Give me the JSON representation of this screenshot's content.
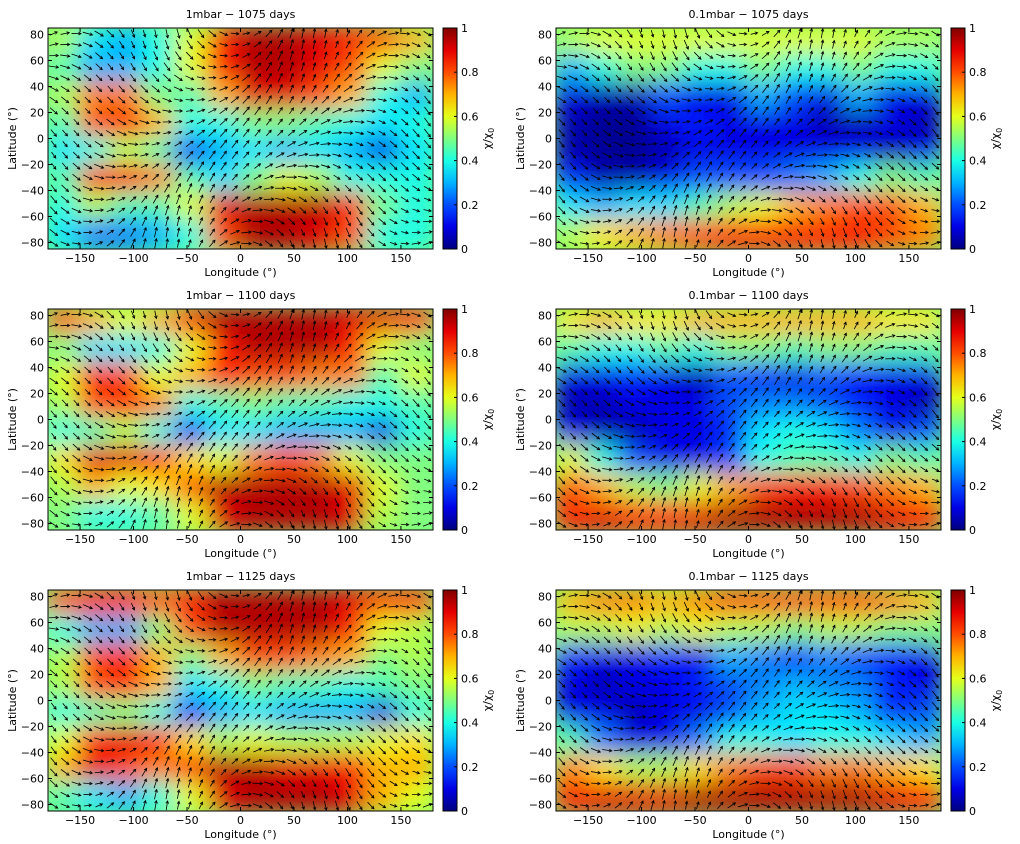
{
  "chart_data": [
    {
      "type": "heatmap",
      "title": "1mbar − 1075 days",
      "xlabel": "Longitude (°)",
      "ylabel": "Latitude (°)",
      "colorbar_label": "χ/χ",
      "xlim": [
        -180,
        180
      ],
      "ylim": [
        -85,
        85
      ],
      "xticks": [
        -150,
        -100,
        -50,
        0,
        50,
        100,
        150
      ],
      "yticks": [
        -80,
        -60,
        -40,
        -20,
        0,
        20,
        40,
        60,
        80
      ],
      "clim": [
        0,
        1
      ],
      "cticks": [
        0,
        0.2,
        0.4,
        0.6,
        0.8,
        1
      ],
      "overlay": "wind vectors",
      "z": [
        [
          0.55,
          0.35,
          0.3,
          0.4,
          0.6,
          0.85,
          0.95,
          0.95,
          0.9,
          0.85,
          0.8,
          0.7
        ],
        [
          0.45,
          0.3,
          0.3,
          0.4,
          0.6,
          0.85,
          0.95,
          0.95,
          0.9,
          0.8,
          0.6,
          0.5
        ],
        [
          0.55,
          0.75,
          0.75,
          0.5,
          0.45,
          0.7,
          0.9,
          0.9,
          0.8,
          0.7,
          0.4,
          0.3
        ],
        [
          0.45,
          0.8,
          0.85,
          0.7,
          0.4,
          0.4,
          0.5,
          0.5,
          0.45,
          0.4,
          0.35,
          0.4
        ],
        [
          0.35,
          0.4,
          0.55,
          0.45,
          0.15,
          0.3,
          0.35,
          0.3,
          0.35,
          0.3,
          0.1,
          0.35
        ],
        [
          0.45,
          0.85,
          0.85,
          0.75,
          0.45,
          0.35,
          0.5,
          0.6,
          0.55,
          0.4,
          0.4,
          0.4
        ],
        [
          0.4,
          0.55,
          0.45,
          0.45,
          0.6,
          0.9,
          0.95,
          0.95,
          0.95,
          0.85,
          0.5,
          0.4
        ],
        [
          0.35,
          0.25,
          0.25,
          0.3,
          0.4,
          0.8,
          0.95,
          0.95,
          0.9,
          0.8,
          0.4,
          0.4
        ]
      ]
    },
    {
      "type": "heatmap",
      "title": "0.1mbar − 1075 days",
      "xlabel": "Longitude (°)",
      "ylabel": "Latitude (°)",
      "colorbar_label": "χ/χ",
      "xlim": [
        -180,
        180
      ],
      "ylim": [
        -85,
        85
      ],
      "xticks": [
        -150,
        -100,
        -50,
        0,
        50,
        100,
        150
      ],
      "yticks": [
        -80,
        -60,
        -40,
        -20,
        0,
        20,
        40,
        60,
        80
      ],
      "clim": [
        0,
        1
      ],
      "cticks": [
        0,
        0.2,
        0.4,
        0.6,
        0.8,
        1
      ],
      "overlay": "wind vectors",
      "z": [
        [
          0.55,
          0.6,
          0.6,
          0.6,
          0.6,
          0.6,
          0.6,
          0.6,
          0.6,
          0.6,
          0.55,
          0.55
        ],
        [
          0.3,
          0.4,
          0.5,
          0.5,
          0.4,
          0.4,
          0.5,
          0.4,
          0.4,
          0.5,
          0.4,
          0.4
        ],
        [
          0.1,
          0.05,
          0.05,
          0.2,
          0.1,
          0.1,
          0.3,
          0.2,
          0.1,
          0.3,
          0.1,
          0.1
        ],
        [
          0.05,
          0.02,
          0.02,
          0.1,
          0.15,
          0.1,
          0.1,
          0.1,
          0.05,
          0.05,
          0.1,
          0.05
        ],
        [
          0.05,
          0.02,
          0.02,
          0.05,
          0.1,
          0.1,
          0.1,
          0.1,
          0.1,
          0.1,
          0.05,
          0.1
        ],
        [
          0.15,
          0.05,
          0.05,
          0.1,
          0.2,
          0.2,
          0.2,
          0.25,
          0.3,
          0.4,
          0.5,
          0.45
        ],
        [
          0.35,
          0.3,
          0.35,
          0.35,
          0.45,
          0.55,
          0.6,
          0.7,
          0.75,
          0.8,
          0.8,
          0.7
        ],
        [
          0.55,
          0.65,
          0.7,
          0.75,
          0.8,
          0.85,
          0.85,
          0.85,
          0.85,
          0.85,
          0.8,
          0.75
        ]
      ]
    },
    {
      "type": "heatmap",
      "title": "1mbar − 1100 days",
      "xlabel": "Longitude (°)",
      "ylabel": "Latitude (°)",
      "colorbar_label": "χ/χ",
      "xlim": [
        -180,
        180
      ],
      "ylim": [
        -85,
        85
      ],
      "xticks": [
        -150,
        -100,
        -50,
        0,
        50,
        100,
        150
      ],
      "yticks": [
        -80,
        -60,
        -40,
        -20,
        0,
        20,
        40,
        60,
        80
      ],
      "clim": [
        0,
        1
      ],
      "cticks": [
        0,
        0.2,
        0.4,
        0.6,
        0.8,
        1
      ],
      "overlay": "wind vectors",
      "z": [
        [
          0.8,
          0.7,
          0.6,
          0.7,
          0.85,
          0.95,
          0.95,
          0.95,
          0.95,
          0.9,
          0.9,
          0.85
        ],
        [
          0.5,
          0.35,
          0.35,
          0.4,
          0.6,
          0.85,
          0.95,
          0.95,
          0.95,
          0.85,
          0.6,
          0.5
        ],
        [
          0.6,
          0.85,
          0.8,
          0.6,
          0.7,
          0.85,
          0.8,
          0.8,
          0.75,
          0.75,
          0.45,
          0.6
        ],
        [
          0.55,
          0.8,
          0.85,
          0.75,
          0.4,
          0.45,
          0.5,
          0.45,
          0.45,
          0.4,
          0.4,
          0.45
        ],
        [
          0.4,
          0.45,
          0.55,
          0.4,
          0.15,
          0.35,
          0.35,
          0.3,
          0.3,
          0.3,
          0.1,
          0.4
        ],
        [
          0.65,
          0.9,
          0.9,
          0.85,
          0.65,
          0.6,
          0.75,
          0.8,
          0.75,
          0.6,
          0.5,
          0.5
        ],
        [
          0.55,
          0.7,
          0.6,
          0.65,
          0.8,
          0.95,
          0.95,
          0.95,
          0.95,
          0.9,
          0.6,
          0.5
        ],
        [
          0.5,
          0.4,
          0.4,
          0.45,
          0.6,
          0.9,
          0.95,
          0.95,
          0.95,
          0.9,
          0.55,
          0.5
        ]
      ]
    },
    {
      "type": "heatmap",
      "title": "0.1mbar − 1100 days",
      "xlabel": "Longitude (°)",
      "ylabel": "Latitude (°)",
      "colorbar_label": "χ/χ",
      "xlim": [
        -180,
        180
      ],
      "ylim": [
        -85,
        85
      ],
      "xticks": [
        -150,
        -100,
        -50,
        0,
        50,
        100,
        150
      ],
      "yticks": [
        -80,
        -60,
        -40,
        -20,
        0,
        20,
        40,
        60,
        80
      ],
      "clim": [
        0,
        1
      ],
      "cticks": [
        0,
        0.2,
        0.4,
        0.6,
        0.8,
        1
      ],
      "overlay": "wind vectors",
      "z": [
        [
          0.65,
          0.7,
          0.65,
          0.65,
          0.7,
          0.7,
          0.7,
          0.7,
          0.7,
          0.7,
          0.65,
          0.65
        ],
        [
          0.45,
          0.4,
          0.4,
          0.45,
          0.4,
          0.5,
          0.5,
          0.45,
          0.5,
          0.5,
          0.45,
          0.45
        ],
        [
          0.1,
          0.1,
          0.15,
          0.1,
          0.05,
          0.2,
          0.15,
          0.1,
          0.2,
          0.15,
          0.1,
          0.1
        ],
        [
          0.05,
          0.05,
          0.1,
          0.1,
          0.1,
          0.2,
          0.25,
          0.25,
          0.2,
          0.15,
          0.1,
          0.05
        ],
        [
          0.1,
          0.05,
          0.05,
          0.1,
          0.1,
          0.15,
          0.35,
          0.4,
          0.35,
          0.25,
          0.1,
          0.2
        ],
        [
          0.6,
          0.4,
          0.2,
          0.1,
          0.1,
          0.2,
          0.4,
          0.45,
          0.45,
          0.4,
          0.5,
          0.45
        ],
        [
          0.8,
          0.7,
          0.55,
          0.5,
          0.6,
          0.7,
          0.8,
          0.85,
          0.85,
          0.8,
          0.75,
          0.7
        ],
        [
          0.85,
          0.9,
          0.85,
          0.85,
          0.9,
          0.95,
          0.95,
          0.95,
          0.95,
          0.95,
          0.9,
          0.85
        ]
      ]
    },
    {
      "type": "heatmap",
      "title": "1mbar − 1125 days",
      "xlabel": "Longitude (°)",
      "ylabel": "Latitude (°)",
      "colorbar_label": "χ/χ",
      "xlim": [
        -180,
        180
      ],
      "ylim": [
        -85,
        85
      ],
      "xticks": [
        -150,
        -100,
        -50,
        0,
        50,
        100,
        150
      ],
      "yticks": [
        -80,
        -60,
        -40,
        -20,
        0,
        20,
        40,
        60,
        80
      ],
      "clim": [
        0,
        1
      ],
      "cticks": [
        0,
        0.2,
        0.4,
        0.6,
        0.8,
        1
      ],
      "overlay": "wind vectors",
      "z": [
        [
          0.8,
          0.85,
          0.85,
          0.8,
          0.85,
          0.95,
          0.95,
          0.95,
          0.95,
          0.9,
          0.85,
          0.85
        ],
        [
          0.4,
          0.3,
          0.3,
          0.5,
          0.8,
          0.95,
          0.95,
          0.95,
          0.95,
          0.85,
          0.6,
          0.55
        ],
        [
          0.55,
          0.8,
          0.85,
          0.7,
          0.5,
          0.7,
          0.8,
          0.8,
          0.75,
          0.7,
          0.5,
          0.55
        ],
        [
          0.55,
          0.8,
          0.85,
          0.7,
          0.35,
          0.4,
          0.5,
          0.45,
          0.45,
          0.4,
          0.45,
          0.5
        ],
        [
          0.4,
          0.45,
          0.5,
          0.4,
          0.15,
          0.3,
          0.35,
          0.3,
          0.3,
          0.3,
          0.1,
          0.4
        ],
        [
          0.6,
          0.85,
          0.9,
          0.85,
          0.65,
          0.55,
          0.6,
          0.55,
          0.55,
          0.55,
          0.6,
          0.65
        ],
        [
          0.7,
          0.9,
          0.8,
          0.75,
          0.85,
          0.95,
          0.95,
          0.9,
          0.9,
          0.85,
          0.7,
          0.7
        ],
        [
          0.45,
          0.35,
          0.3,
          0.4,
          0.6,
          0.9,
          0.95,
          0.95,
          0.95,
          0.9,
          0.7,
          0.6
        ]
      ]
    },
    {
      "type": "heatmap",
      "title": "0.1mbar − 1125 days",
      "xlabel": "Longitude (°)",
      "ylabel": "Latitude (°)",
      "colorbar_label": "χ/χ",
      "xlim": [
        -180,
        180
      ],
      "ylim": [
        -85,
        85
      ],
      "xticks": [
        -150,
        -100,
        -50,
        0,
        50,
        100,
        150
      ],
      "yticks": [
        -80,
        -60,
        -40,
        -20,
        0,
        20,
        40,
        60,
        80
      ],
      "clim": [
        0,
        1
      ],
      "cticks": [
        0,
        0.2,
        0.4,
        0.6,
        0.8,
        1
      ],
      "overlay": "wind vectors",
      "z": [
        [
          0.7,
          0.75,
          0.75,
          0.7,
          0.75,
          0.8,
          0.8,
          0.8,
          0.8,
          0.8,
          0.75,
          0.7
        ],
        [
          0.55,
          0.55,
          0.6,
          0.55,
          0.6,
          0.55,
          0.55,
          0.5,
          0.55,
          0.55,
          0.5,
          0.5
        ],
        [
          0.15,
          0.1,
          0.1,
          0.15,
          0.1,
          0.3,
          0.25,
          0.15,
          0.25,
          0.2,
          0.15,
          0.1
        ],
        [
          0.1,
          0.05,
          0.1,
          0.1,
          0.15,
          0.2,
          0.25,
          0.3,
          0.25,
          0.25,
          0.15,
          0.1
        ],
        [
          0.1,
          0.1,
          0.05,
          0.1,
          0.1,
          0.2,
          0.3,
          0.35,
          0.35,
          0.3,
          0.15,
          0.2
        ],
        [
          0.45,
          0.25,
          0.1,
          0.1,
          0.25,
          0.4,
          0.4,
          0.35,
          0.4,
          0.4,
          0.35,
          0.3
        ],
        [
          0.75,
          0.65,
          0.55,
          0.55,
          0.65,
          0.75,
          0.8,
          0.8,
          0.75,
          0.75,
          0.7,
          0.65
        ],
        [
          0.85,
          0.9,
          0.9,
          0.9,
          0.95,
          0.95,
          0.95,
          0.95,
          0.95,
          0.95,
          0.9,
          0.85
        ]
      ]
    }
  ]
}
